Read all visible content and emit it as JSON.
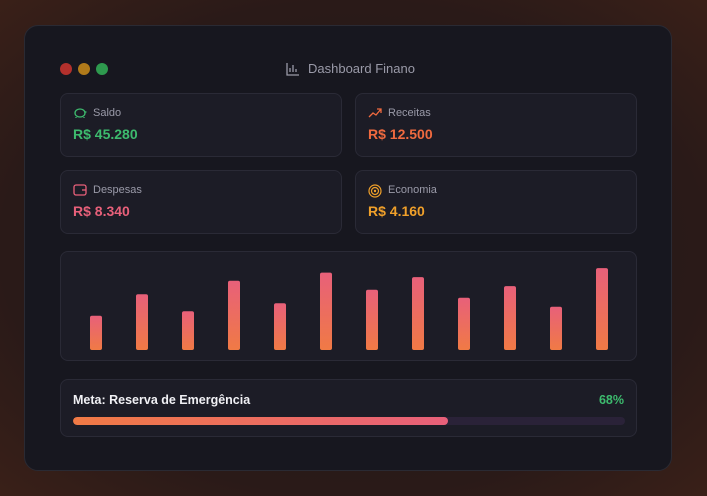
{
  "window": {
    "title": "Dashboard Finano"
  },
  "cards": [
    {
      "label": "Saldo",
      "value": "R$ 45.280",
      "color": "#3dbb6e"
    },
    {
      "label": "Receitas",
      "value": "R$ 12.500",
      "color": "#f06a3f"
    },
    {
      "label": "Despesas",
      "value": "R$ 8.340",
      "color": "#e8607a"
    },
    {
      "label": "Economia",
      "value": "R$ 4.160",
      "color": "#f0a02a"
    }
  ],
  "chart_data": {
    "type": "bar",
    "values": [
      38,
      62,
      43,
      77,
      52,
      86,
      67,
      81,
      58,
      71,
      48,
      91
    ],
    "ylim": [
      0,
      100
    ]
  },
  "progress": {
    "label": "Meta: Reserva de Emergência",
    "value": 68,
    "value_label": "68%",
    "color": "#3dbb6e"
  }
}
